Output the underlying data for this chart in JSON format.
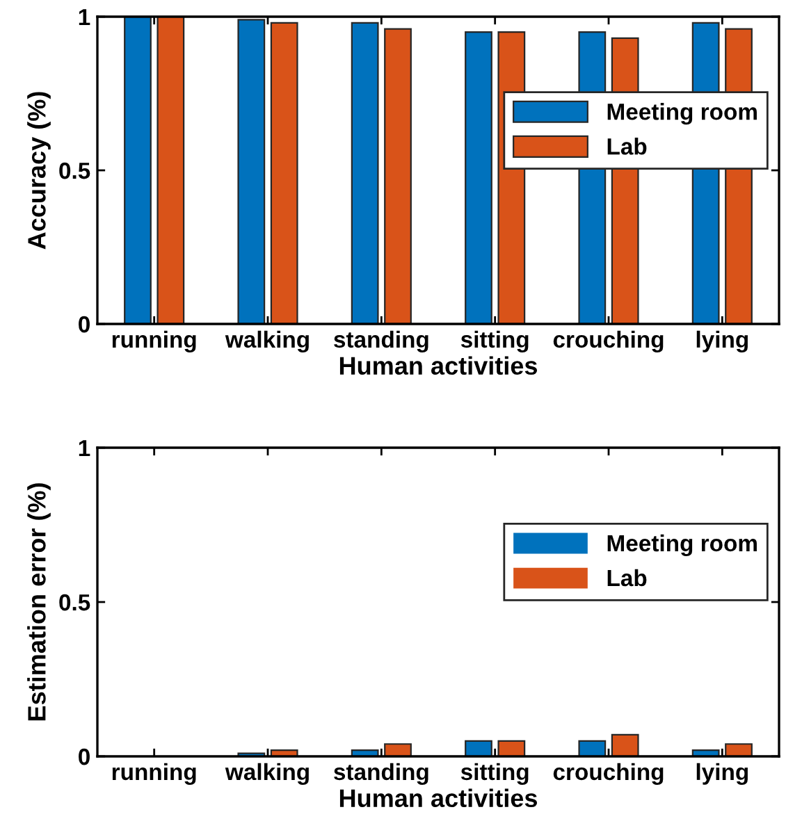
{
  "chart_data": [
    {
      "type": "bar",
      "xlabel": "Human activities",
      "ylabel": "Accuracy (%)",
      "categories": [
        "running",
        "walking",
        "standing",
        "sitting",
        "crouching",
        "lying"
      ],
      "series": [
        {
          "name": "Meeting room",
          "color": "#0072bd",
          "values": [
            1,
            0.99,
            0.98,
            0.95,
            0.95,
            0.98
          ]
        },
        {
          "name": "Lab",
          "color": "#d95319",
          "values": [
            1,
            0.98,
            0.96,
            0.95,
            0.93,
            0.96
          ]
        }
      ],
      "ylim": [
        0,
        1
      ],
      "yticks": [
        0,
        0.5,
        1
      ],
      "legend": "right",
      "grid": false
    },
    {
      "type": "bar",
      "xlabel": "Human activities",
      "ylabel": "Estimation error (%)",
      "categories": [
        "running",
        "walking",
        "standing",
        "sitting",
        "crouching",
        "lying"
      ],
      "series": [
        {
          "name": "Meeting room",
          "color": "#0072bd",
          "values": [
            0,
            0.01,
            0.02,
            0.05,
            0.05,
            0.02
          ]
        },
        {
          "name": "Lab",
          "color": "#d95319",
          "values": [
            0,
            0.02,
            0.04,
            0.05,
            0.07,
            0.04
          ]
        }
      ],
      "ylim": [
        0,
        1
      ],
      "yticks": [
        0,
        0.5,
        1
      ],
      "legend": "right",
      "grid": false
    }
  ]
}
